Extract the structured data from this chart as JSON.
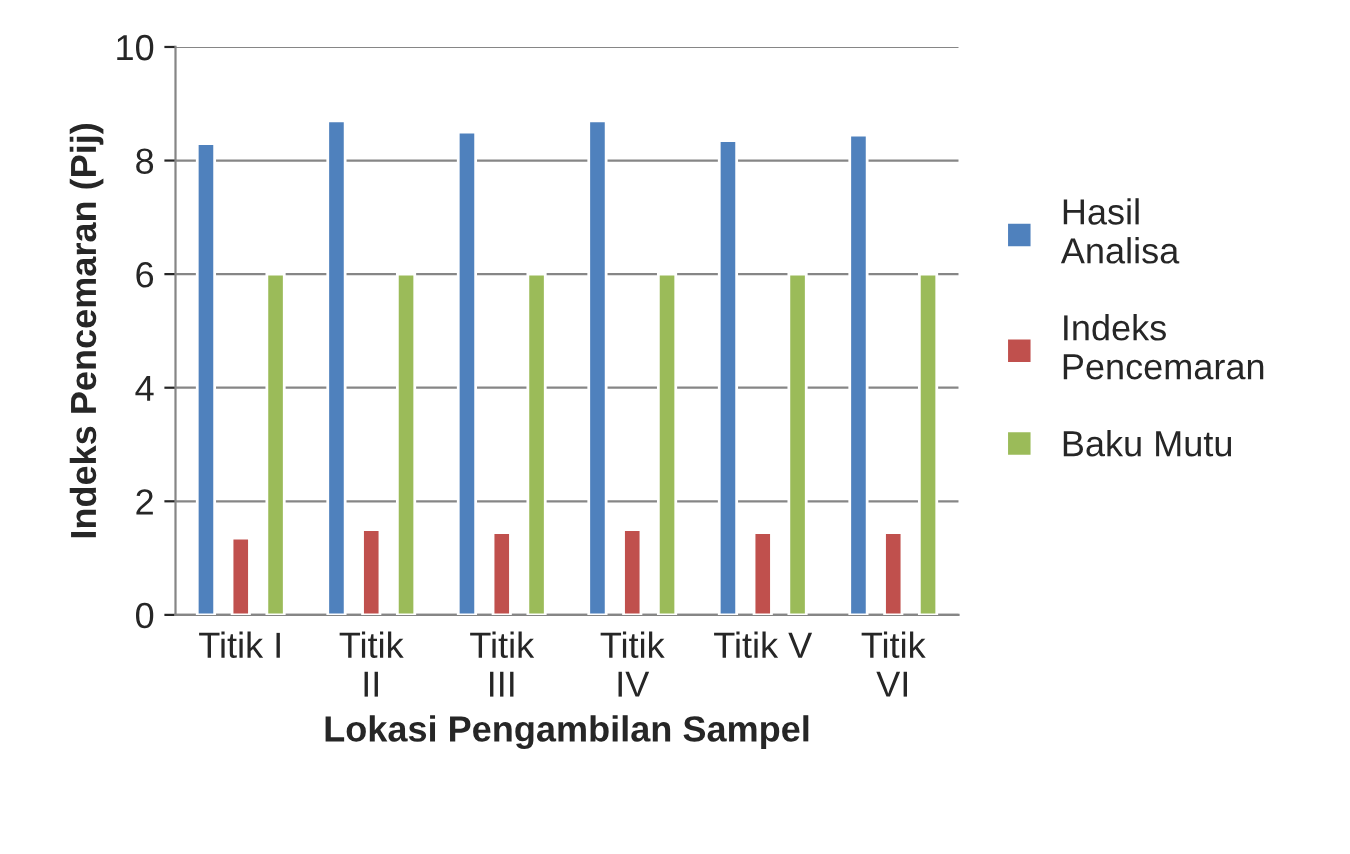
{
  "chart_data": {
    "type": "bar",
    "xlabel": "Lokasi Pengambilan Sampel",
    "ylabel": "Indeks Pencemaran (Pij)",
    "categories": [
      "Titik I",
      "Titik II",
      "Titik III",
      "Titik IV",
      "Titik V",
      "Titik VI"
    ],
    "series": [
      {
        "name": "Hasil Analisa",
        "color": "#4f81bd",
        "values": [
          8.3,
          8.7,
          8.5,
          8.7,
          8.35,
          8.45
        ]
      },
      {
        "name": "Indeks Pencemaran",
        "color": "#c0504d",
        "values": [
          1.35,
          1.5,
          1.45,
          1.5,
          1.45,
          1.45
        ]
      },
      {
        "name": "Baku Mutu",
        "color": "#9bbb59",
        "values": [
          6,
          6,
          6,
          6,
          6,
          6
        ]
      }
    ],
    "ylim": [
      0,
      10
    ],
    "yticks": [
      0,
      2,
      4,
      6,
      8,
      10
    ],
    "grid": "y",
    "legend": "right"
  }
}
